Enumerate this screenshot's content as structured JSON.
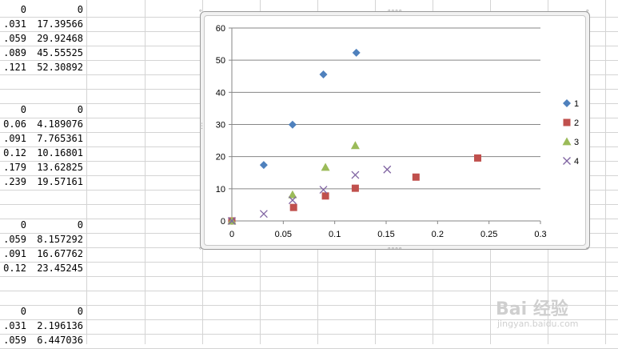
{
  "spreadsheet": {
    "blocks": [
      {
        "rows": [
          [
            "0",
            "0"
          ],
          [
            ".031",
            "17.39566"
          ],
          [
            ".059",
            "29.92468"
          ],
          [
            ".089",
            "45.55525"
          ],
          [
            ".121",
            "52.30892"
          ]
        ]
      },
      {
        "rows": [
          [
            "0",
            "0"
          ],
          [
            "0.06",
            "4.189076"
          ],
          [
            ".091",
            "7.765361"
          ],
          [
            "0.12",
            "10.16801"
          ],
          [
            ".179",
            "13.62825"
          ],
          [
            ".239",
            "19.57161"
          ]
        ]
      },
      {
        "rows": [
          [
            "0",
            "0"
          ],
          [
            ".059",
            "8.157292"
          ],
          [
            ".091",
            "16.67762"
          ],
          [
            "0.12",
            "23.45245"
          ]
        ]
      },
      {
        "rows": [
          [
            "0",
            "0"
          ],
          [
            ".031",
            "2.196136"
          ],
          [
            ".059",
            "6.447036"
          ]
        ]
      }
    ]
  },
  "colors": {
    "series_1": "#4f81bd",
    "series_2": "#c0504d",
    "series_3": "#9bbb59",
    "series_4": "#8064a2",
    "gridline": "#868686"
  },
  "chart_data": {
    "type": "scatter",
    "title": "",
    "xlabel": "",
    "ylabel": "",
    "xlim": [
      0,
      0.3
    ],
    "ylim": [
      0,
      60
    ],
    "x_ticks": [
      "0",
      "0.05",
      "0.1",
      "0.15",
      "0.2",
      "0.25",
      "0.3"
    ],
    "y_ticks": [
      "0",
      "10",
      "20",
      "30",
      "40",
      "50",
      "60"
    ],
    "grid": "horizontal",
    "legend_position": "right",
    "series": [
      {
        "name": "1",
        "marker": "diamond",
        "color": "#4f81bd",
        "points": [
          [
            0,
            0
          ],
          [
            0.031,
            17.39566
          ],
          [
            0.059,
            29.92468
          ],
          [
            0.089,
            45.55525
          ],
          [
            0.121,
            52.30892
          ]
        ]
      },
      {
        "name": "2",
        "marker": "square",
        "color": "#c0504d",
        "points": [
          [
            0,
            0
          ],
          [
            0.06,
            4.189076
          ],
          [
            0.091,
            7.765361
          ],
          [
            0.12,
            10.16801
          ],
          [
            0.179,
            13.62825
          ],
          [
            0.239,
            19.57161
          ]
        ]
      },
      {
        "name": "3",
        "marker": "triangle",
        "color": "#9bbb59",
        "points": [
          [
            0,
            0
          ],
          [
            0.059,
            8.157292
          ],
          [
            0.091,
            16.67762
          ],
          [
            0.12,
            23.45245
          ]
        ]
      },
      {
        "name": "4",
        "marker": "x",
        "color": "#8064a2",
        "points": [
          [
            0,
            0
          ],
          [
            0.031,
            2.196136
          ],
          [
            0.059,
            6.447036
          ],
          [
            0.089,
            9.7
          ],
          [
            0.12,
            14.3
          ],
          [
            0.151,
            16.0
          ]
        ]
      }
    ]
  },
  "watermark": {
    "brand": "Bai  经验",
    "url": "jingyan.baidu.com"
  }
}
